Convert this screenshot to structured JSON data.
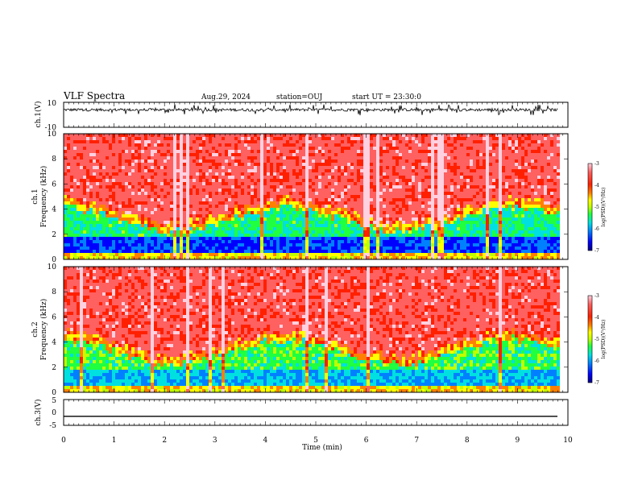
{
  "header": {
    "title": "VLF Spectra",
    "date": "Aug.29, 2024",
    "station": "station=OUJ",
    "start": "start UT = 23:30:0"
  },
  "chart_data": [
    {
      "type": "line",
      "ylabel": "ch.1(V)",
      "ylim": [
        -10,
        10
      ],
      "ytick_labels": [
        "10",
        "-10"
      ],
      "baseline": 4,
      "description_series": "noisy waveform"
    },
    {
      "type": "heatmap",
      "ylabel_line1": "ch.1",
      "ylabel_line2": "Frequency (kHz)",
      "ylim": [
        0,
        10
      ],
      "ytick_labels": [
        "0",
        "2",
        "4",
        "6",
        "8",
        "10"
      ],
      "colorbar": {
        "label": "log(PSD)(V²/Hz)",
        "range": [
          -7,
          -3
        ],
        "tick_labels": [
          "-3",
          "-4",
          "-5",
          "-6",
          "-7"
        ],
        "colors": [
          "#000080",
          "#0000ff",
          "#0080ff",
          "#00e0e0",
          "#20ff40",
          "#c0ff00",
          "#ffff00",
          "#ff8000",
          "#ff2000",
          "#ff6060",
          "#ffd0e0"
        ]
      }
    },
    {
      "type": "heatmap",
      "ylabel_line1": "ch.2",
      "ylabel_line2": "Frequency (kHz)",
      "ylim": [
        0,
        10
      ],
      "ytick_labels": [
        "0",
        "2",
        "4",
        "6",
        "8",
        "10"
      ],
      "colorbar": {
        "label": "log(PSD)(V²/Hz)",
        "range": [
          -7,
          -3
        ],
        "tick_labels": [
          "-3",
          "-4",
          "-5",
          "-6",
          "-7"
        ]
      }
    },
    {
      "type": "line",
      "ylabel": "ch.3(V)",
      "ylim": [
        -5,
        5
      ],
      "ytick_labels": [
        "5",
        "0",
        "-5"
      ],
      "constant_value": -1.5
    }
  ],
  "xaxis": {
    "label": "Time (min)",
    "range": [
      0,
      10
    ],
    "tick_labels": [
      "0",
      "1",
      "2",
      "3",
      "4",
      "5",
      "6",
      "7",
      "8",
      "9",
      "10"
    ]
  }
}
